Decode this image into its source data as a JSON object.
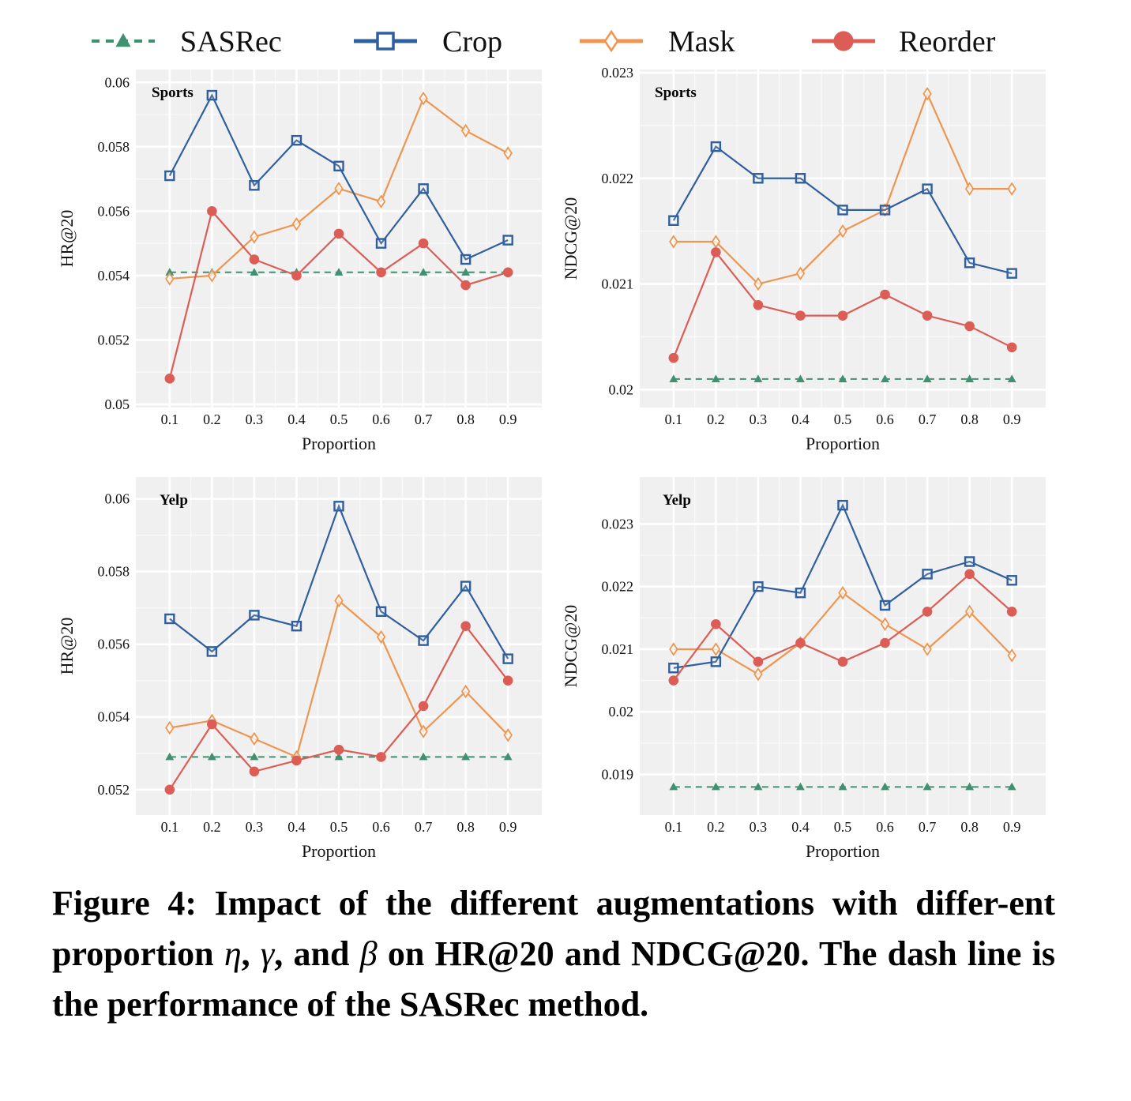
{
  "legend": {
    "entries": [
      {
        "name": "SASRec",
        "color": "#3f9170",
        "marker": "triangle",
        "dash": true
      },
      {
        "name": "Crop",
        "color": "#2f5f9e",
        "marker": "square",
        "dash": false
      },
      {
        "name": "Mask",
        "color": "#ee9550",
        "marker": "diamond",
        "dash": false
      },
      {
        "name": "Reorder",
        "color": "#dc5d56",
        "marker": "circle",
        "dash": false
      }
    ]
  },
  "chart_data": [
    {
      "type": "line",
      "panel": "top-left",
      "title": "Sports",
      "xlabel": "Proportion",
      "ylabel": "HR@20",
      "x": [
        0.1,
        0.2,
        0.3,
        0.4,
        0.5,
        0.6,
        0.7,
        0.8,
        0.9
      ],
      "x_tick_labels": [
        "0.1",
        "0.2",
        "0.3",
        "0.4",
        "0.5",
        "0.6",
        "0.7",
        "0.8",
        "0.9"
      ],
      "y_ticks": [
        0.05,
        0.052,
        0.054,
        0.056,
        0.058,
        0.06
      ],
      "y_tick_labels": [
        "0.05",
        "0.052",
        "0.054",
        "0.056",
        "0.058",
        "0.06"
      ],
      "ylim": [
        0.0499,
        0.0604
      ],
      "grid": true,
      "series": [
        {
          "name": "SASRec",
          "values": [
            0.0541,
            0.0541,
            0.0541,
            0.0541,
            0.0541,
            0.0541,
            0.0541,
            0.0541,
            0.0541
          ]
        },
        {
          "name": "Crop",
          "values": [
            0.0571,
            0.0596,
            0.0568,
            0.0582,
            0.0574,
            0.055,
            0.0567,
            0.0545,
            0.0551
          ]
        },
        {
          "name": "Mask",
          "values": [
            0.0539,
            0.054,
            0.0552,
            0.0556,
            0.0567,
            0.0563,
            0.0595,
            0.0585,
            0.0578
          ]
        },
        {
          "name": "Reorder",
          "values": [
            0.0508,
            0.056,
            0.0545,
            0.054,
            0.0553,
            0.0541,
            0.055,
            0.0537,
            0.0541
          ]
        }
      ]
    },
    {
      "type": "line",
      "panel": "top-right",
      "title": "Sports",
      "xlabel": "Proportion",
      "ylabel": "NDCG@20",
      "x": [
        0.1,
        0.2,
        0.3,
        0.4,
        0.5,
        0.6,
        0.7,
        0.8,
        0.9
      ],
      "x_tick_labels": [
        "0.1",
        "0.2",
        "0.3",
        "0.4",
        "0.5",
        "0.6",
        "0.7",
        "0.8",
        "0.9"
      ],
      "y_ticks": [
        0.02,
        0.021,
        0.022,
        0.023
      ],
      "y_tick_labels": [
        "0.02",
        "0.021",
        "0.022",
        "0.023"
      ],
      "ylim": [
        0.01983,
        0.02303
      ],
      "grid": true,
      "series": [
        {
          "name": "SASRec",
          "values": [
            0.0201,
            0.0201,
            0.0201,
            0.0201,
            0.0201,
            0.0201,
            0.0201,
            0.0201,
            0.0201
          ]
        },
        {
          "name": "Crop",
          "values": [
            0.0216,
            0.0223,
            0.022,
            0.022,
            0.0217,
            0.0217,
            0.0219,
            0.0212,
            0.0211
          ]
        },
        {
          "name": "Mask",
          "values": [
            0.0214,
            0.0214,
            0.021,
            0.0211,
            0.0215,
            0.0217,
            0.0228,
            0.0219,
            0.0219
          ]
        },
        {
          "name": "Reorder",
          "values": [
            0.0203,
            0.0213,
            0.0208,
            0.0207,
            0.0207,
            0.0209,
            0.0207,
            0.0206,
            0.0204
          ]
        }
      ]
    },
    {
      "type": "line",
      "panel": "bottom-left",
      "title": "Yelp",
      "xlabel": "Proportion",
      "ylabel": "HR@20",
      "x": [
        0.1,
        0.2,
        0.3,
        0.4,
        0.5,
        0.6,
        0.7,
        0.8,
        0.9
      ],
      "x_tick_labels": [
        "0.1",
        "0.2",
        "0.3",
        "0.4",
        "0.5",
        "0.6",
        "0.7",
        "0.8",
        "0.9"
      ],
      "y_ticks": [
        0.052,
        0.054,
        0.056,
        0.058,
        0.06
      ],
      "y_tick_labels": [
        "0.052",
        "0.054",
        "0.056",
        "0.058",
        "0.06"
      ],
      "ylim": [
        0.0513,
        0.0606
      ],
      "grid": true,
      "series": [
        {
          "name": "SASRec",
          "values": [
            0.0529,
            0.0529,
            0.0529,
            0.0529,
            0.0529,
            0.0529,
            0.0529,
            0.0529,
            0.0529
          ]
        },
        {
          "name": "Crop",
          "values": [
            0.0567,
            0.0558,
            0.0568,
            0.0565,
            0.0598,
            0.0569,
            0.0561,
            0.0576,
            0.0556
          ]
        },
        {
          "name": "Mask",
          "values": [
            0.0537,
            0.0539,
            0.0534,
            0.0529,
            0.0572,
            0.0562,
            0.0536,
            0.0547,
            0.0535
          ]
        },
        {
          "name": "Reorder",
          "values": [
            0.052,
            0.0538,
            0.0525,
            0.0528,
            0.0531,
            0.0529,
            0.0543,
            0.0565,
            0.055
          ]
        }
      ]
    },
    {
      "type": "line",
      "panel": "bottom-right",
      "title": "Yelp",
      "xlabel": "Proportion",
      "ylabel": "NDCG@20",
      "x": [
        0.1,
        0.2,
        0.3,
        0.4,
        0.5,
        0.6,
        0.7,
        0.8,
        0.9
      ],
      "x_tick_labels": [
        "0.1",
        "0.2",
        "0.3",
        "0.4",
        "0.5",
        "0.6",
        "0.7",
        "0.8",
        "0.9"
      ],
      "y_ticks": [
        0.019,
        0.02,
        0.021,
        0.022,
        0.023
      ],
      "y_tick_labels": [
        "0.019",
        "0.02",
        "0.021",
        "0.022",
        "0.023"
      ],
      "ylim": [
        0.01835,
        0.02375
      ],
      "grid": true,
      "series": [
        {
          "name": "SASRec",
          "values": [
            0.0188,
            0.0188,
            0.0188,
            0.0188,
            0.0188,
            0.0188,
            0.0188,
            0.0188,
            0.0188
          ]
        },
        {
          "name": "Crop",
          "values": [
            0.0207,
            0.0208,
            0.022,
            0.0219,
            0.0233,
            0.0217,
            0.0222,
            0.0224,
            0.0221
          ]
        },
        {
          "name": "Mask",
          "values": [
            0.021,
            0.021,
            0.0206,
            0.0211,
            0.0219,
            0.0214,
            0.021,
            0.0216,
            0.0209
          ]
        },
        {
          "name": "Reorder",
          "values": [
            0.0205,
            0.0214,
            0.0208,
            0.0211,
            0.0208,
            0.0211,
            0.0216,
            0.0222,
            0.0216
          ]
        }
      ]
    }
  ],
  "caption": {
    "part1": "Figure 4: Impact of the different augmentations with differ-ent proportion ",
    "eta": "η",
    "sep1": ", ",
    "gamma": "γ",
    "sep2": ", and ",
    "beta": "β",
    "part2": " on HR@20 and NDCG@20. The dash line is the performance of the SASRec method."
  }
}
